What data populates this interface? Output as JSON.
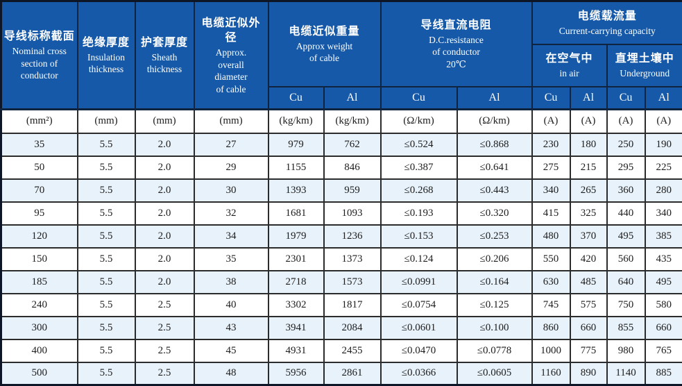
{
  "colors": {
    "header_bg": "#1659a8",
    "header_text": "#ffffff",
    "row_alt_bg": "#e8f2fa",
    "row_bg": "#ffffff",
    "grid_line": "#2b2b2b",
    "outer_border": "#0c1626",
    "header_line": "#10233f",
    "body_text": "#1c1c1c"
  },
  "header": {
    "nominal": {
      "zh": "导线标称截面",
      "en": "Nominal cross\nsection of\nconductor"
    },
    "insulation": {
      "zh": "绝缘厚度",
      "en": "Insulation\nthickness"
    },
    "sheath": {
      "zh": "护套厚度",
      "en": "Sheath\nthickness"
    },
    "diameter": {
      "zh": "电缆近似外径",
      "en": "Approx.\noverall\ndiameter\nof cable"
    },
    "weight": {
      "zh": "电缆近似重量",
      "en": "Approx weight\nof cable"
    },
    "resistance": {
      "zh": "导线直流电阻",
      "en": "D.C.resistance\nof conductor\n20℃"
    },
    "capacity": {
      "zh": "电缆载流量",
      "en": "Current-carrying capacity"
    },
    "in_air": {
      "zh": "在空气中",
      "en": "in air"
    },
    "underground": {
      "zh": "直埋土壤中",
      "en": "Underground"
    },
    "cu": "Cu",
    "al": "Al"
  },
  "units": [
    "(mm²)",
    "(mm)",
    "(mm)",
    "(mm)",
    "(kg/km)",
    "(kg/km)",
    "(Ω/km)",
    "(Ω/km)",
    "(A)",
    "(A)",
    "(A)",
    "(A)"
  ],
  "rows": [
    [
      "35",
      "5.5",
      "2.0",
      "27",
      "979",
      "762",
      "≤0.524",
      "≤0.868",
      "230",
      "180",
      "250",
      "190"
    ],
    [
      "50",
      "5.5",
      "2.0",
      "29",
      "1155",
      "846",
      "≤0.387",
      "≤0.641",
      "275",
      "215",
      "295",
      "225"
    ],
    [
      "70",
      "5.5",
      "2.0",
      "30",
      "1393",
      "959",
      "≤0.268",
      "≤0.443",
      "340",
      "265",
      "360",
      "280"
    ],
    [
      "95",
      "5.5",
      "2.0",
      "32",
      "1681",
      "1093",
      "≤0.193",
      "≤0.320",
      "415",
      "325",
      "440",
      "340"
    ],
    [
      "120",
      "5.5",
      "2.0",
      "34",
      "1979",
      "1236",
      "≤0.153",
      "≤0.253",
      "480",
      "370",
      "495",
      "385"
    ],
    [
      "150",
      "5.5",
      "2.0",
      "35",
      "2301",
      "1373",
      "≤0.124",
      "≤0.206",
      "550",
      "420",
      "560",
      "435"
    ],
    [
      "185",
      "5.5",
      "2.0",
      "38",
      "2718",
      "1573",
      "≤0.0991",
      "≤0.164",
      "630",
      "485",
      "640",
      "495"
    ],
    [
      "240",
      "5.5",
      "2.5",
      "40",
      "3302",
      "1817",
      "≤0.0754",
      "≤0.125",
      "745",
      "575",
      "750",
      "580"
    ],
    [
      "300",
      "5.5",
      "2.5",
      "43",
      "3941",
      "2084",
      "≤0.0601",
      "≤0.100",
      "860",
      "660",
      "855",
      "660"
    ],
    [
      "400",
      "5.5",
      "2.5",
      "45",
      "4931",
      "2455",
      "≤0.0470",
      "≤0.0778",
      "1000",
      "775",
      "980",
      "765"
    ],
    [
      "500",
      "5.5",
      "2.5",
      "48",
      "5956",
      "2861",
      "≤0.0366",
      "≤0.0605",
      "1160",
      "890",
      "1140",
      "885"
    ]
  ]
}
